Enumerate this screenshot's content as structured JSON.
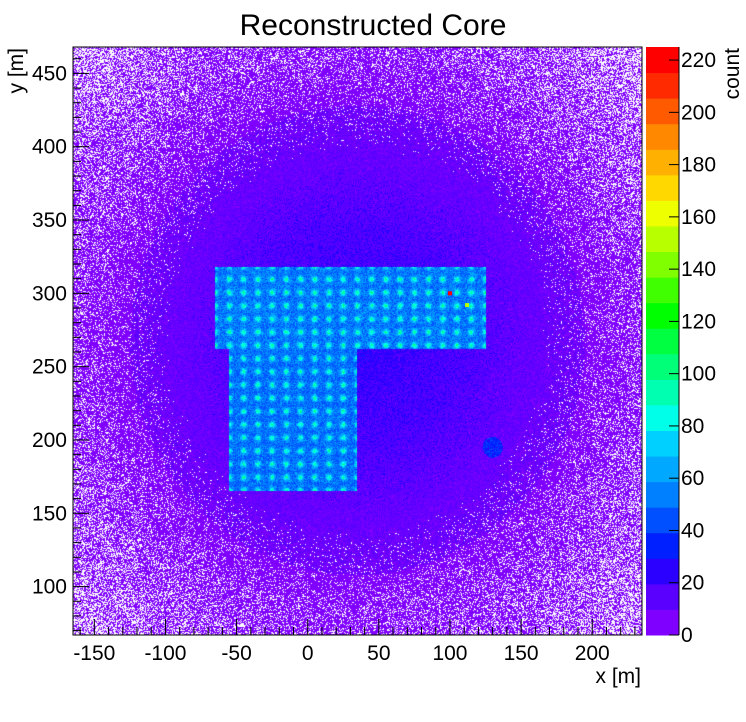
{
  "chart_data": {
    "type": "heatmap",
    "title": "Reconstructed Core",
    "xlabel": "x [m]",
    "ylabel": "y [m]",
    "zlabel": "count",
    "xlim": [
      -165,
      235
    ],
    "ylim": [
      67,
      468
    ],
    "zlim": [
      0,
      225
    ],
    "x_ticks": [
      -150,
      -100,
      -50,
      0,
      50,
      100,
      150,
      200
    ],
    "y_ticks": [
      100,
      150,
      200,
      250,
      300,
      350,
      400,
      450
    ],
    "z_ticks": [
      0,
      20,
      40,
      60,
      80,
      100,
      120,
      140,
      160,
      180,
      200,
      220
    ],
    "palette": [
      "#7f00ff",
      "#5a00ff",
      "#2b00ff",
      "#0020ff",
      "#0050ff",
      "#0080ff",
      "#00a8ff",
      "#00d0ff",
      "#00ffe8",
      "#00ffb0",
      "#00ff78",
      "#00ff40",
      "#00ff00",
      "#40ff00",
      "#80ff00",
      "#b8ff00",
      "#eeff00",
      "#ffd800",
      "#ffb000",
      "#ff8800",
      "#ff5a00",
      "#ff2a00",
      "#ff0000"
    ],
    "regions": {
      "upper_block": {
        "x": [
          -65,
          125
        ],
        "y": [
          262,
          318
        ],
        "level": 52
      },
      "lower_block": {
        "x": [
          -55,
          35
        ],
        "y": [
          165,
          265
        ],
        "level": 50
      },
      "blob": {
        "center": [
          130,
          195
        ],
        "radius": 7,
        "level": 35
      }
    },
    "hot_spots": [
      {
        "x": 100,
        "y": 300,
        "value": 220
      },
      {
        "x": 112,
        "y": 292,
        "value": 150
      }
    ]
  }
}
